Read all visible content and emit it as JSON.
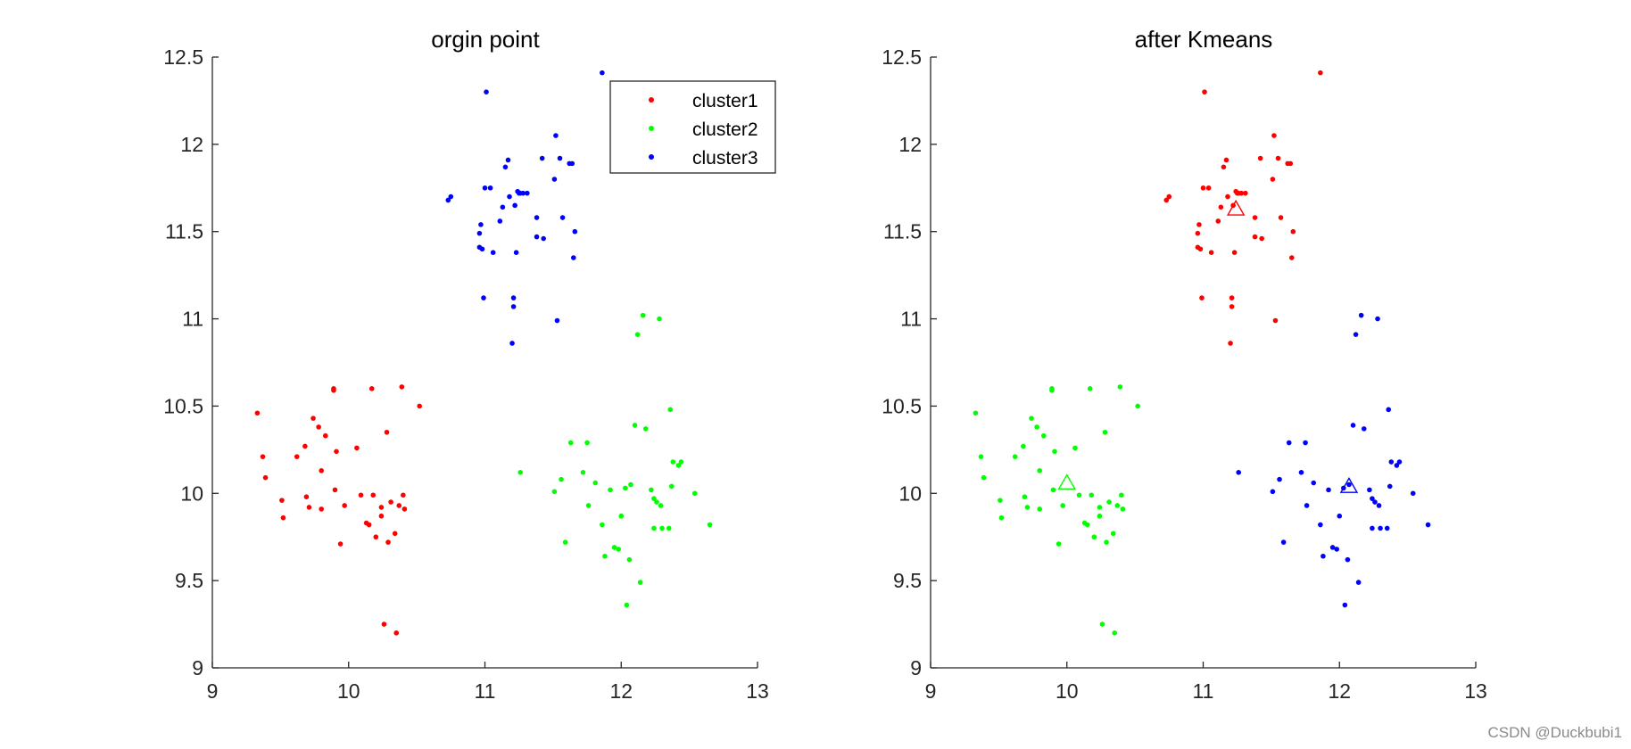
{
  "watermark": "CSDN @Duckbubi1",
  "colors": {
    "cluster1": "#ff0000",
    "cluster2": "#00ff00",
    "cluster3": "#0000ff",
    "axis": "#262626"
  },
  "chart_data": [
    {
      "type": "scatter",
      "title": "orgin point",
      "xlim": [
        9,
        13
      ],
      "ylim": [
        9,
        12.5
      ],
      "xticks": [
        9,
        10,
        11,
        12,
        13
      ],
      "yticks": [
        9,
        9.5,
        10,
        10.5,
        11,
        11.5,
        12,
        12.5
      ],
      "xtick_labels": [
        "9",
        "10",
        "11",
        "12",
        "13"
      ],
      "ytick_labels": [
        "9",
        "9.5",
        "10",
        "10.5",
        "11",
        "11.5",
        "12",
        "12.5"
      ],
      "grid": false,
      "legend": {
        "placement": "top-right",
        "entries": [
          "cluster1",
          "cluster2",
          "cluster3"
        ]
      },
      "series": [
        {
          "name": "cluster1",
          "color": "#ff0000",
          "points": [
            [
              9.33,
              10.46
            ],
            [
              9.37,
              10.21
            ],
            [
              9.39,
              10.09
            ],
            [
              9.51,
              9.96
            ],
            [
              9.52,
              9.86
            ],
            [
              9.62,
              10.21
            ],
            [
              9.68,
              10.27
            ],
            [
              9.69,
              9.98
            ],
            [
              9.71,
              9.92
            ],
            [
              9.74,
              10.43
            ],
            [
              9.78,
              10.38
            ],
            [
              9.8,
              9.91
            ],
            [
              9.8,
              10.13
            ],
            [
              9.83,
              10.33
            ],
            [
              9.89,
              10.6
            ],
            [
              9.89,
              10.59
            ],
            [
              9.9,
              10.02
            ],
            [
              9.91,
              10.24
            ],
            [
              9.94,
              9.71
            ],
            [
              9.97,
              9.93
            ],
            [
              10.06,
              10.26
            ],
            [
              10.09,
              9.99
            ],
            [
              10.13,
              9.83
            ],
            [
              10.15,
              9.82
            ],
            [
              10.17,
              10.6
            ],
            [
              10.18,
              9.99
            ],
            [
              10.2,
              9.75
            ],
            [
              10.24,
              9.92
            ],
            [
              10.24,
              9.87
            ],
            [
              10.26,
              9.25
            ],
            [
              10.28,
              10.35
            ],
            [
              10.29,
              9.72
            ],
            [
              10.31,
              9.95
            ],
            [
              10.34,
              9.77
            ],
            [
              10.35,
              9.2
            ],
            [
              10.37,
              9.93
            ],
            [
              10.39,
              10.61
            ],
            [
              10.4,
              9.99
            ],
            [
              10.41,
              9.91
            ],
            [
              10.52,
              10.5
            ]
          ]
        },
        {
          "name": "cluster2",
          "color": "#00ff00",
          "points": [
            [
              11.26,
              10.12
            ],
            [
              11.51,
              10.01
            ],
            [
              11.56,
              10.08
            ],
            [
              11.59,
              9.72
            ],
            [
              11.63,
              10.29
            ],
            [
              11.75,
              10.29
            ],
            [
              11.72,
              10.12
            ],
            [
              11.76,
              9.93
            ],
            [
              11.81,
              10.06
            ],
            [
              11.86,
              9.82
            ],
            [
              11.88,
              9.64
            ],
            [
              11.92,
              10.02
            ],
            [
              11.95,
              9.69
            ],
            [
              11.98,
              9.68
            ],
            [
              12.0,
              9.87
            ],
            [
              12.03,
              10.03
            ],
            [
              12.04,
              9.36
            ],
            [
              12.06,
              9.62
            ],
            [
              12.07,
              10.05
            ],
            [
              12.1,
              10.39
            ],
            [
              12.12,
              10.91
            ],
            [
              12.14,
              9.49
            ],
            [
              12.16,
              11.02
            ],
            [
              12.18,
              10.37
            ],
            [
              12.22,
              10.02
            ],
            [
              12.24,
              9.8
            ],
            [
              12.24,
              9.97
            ],
            [
              12.26,
              9.95
            ],
            [
              12.28,
              11.0
            ],
            [
              12.29,
              9.93
            ],
            [
              12.3,
              9.8
            ],
            [
              12.35,
              9.8
            ],
            [
              12.36,
              10.48
            ],
            [
              12.37,
              10.04
            ],
            [
              12.38,
              10.18
            ],
            [
              12.42,
              10.16
            ],
            [
              12.44,
              10.18
            ],
            [
              12.54,
              10.0
            ],
            [
              12.65,
              9.82
            ]
          ]
        },
        {
          "name": "cluster3",
          "color": "#0000ff",
          "points": [
            [
              10.73,
              11.68
            ],
            [
              10.75,
              11.7
            ],
            [
              10.96,
              11.49
            ],
            [
              10.96,
              11.41
            ],
            [
              10.97,
              11.54
            ],
            [
              10.98,
              11.4
            ],
            [
              10.99,
              11.12
            ],
            [
              11.0,
              11.75
            ],
            [
              11.01,
              12.3
            ],
            [
              11.04,
              11.75
            ],
            [
              11.06,
              11.38
            ],
            [
              11.11,
              11.56
            ],
            [
              11.13,
              11.64
            ],
            [
              11.15,
              11.87
            ],
            [
              11.17,
              11.91
            ],
            [
              11.18,
              11.7
            ],
            [
              11.2,
              10.86
            ],
            [
              11.21,
              11.12
            ],
            [
              11.21,
              11.07
            ],
            [
              11.22,
              11.65
            ],
            [
              11.23,
              11.38
            ],
            [
              11.24,
              11.73
            ],
            [
              11.25,
              11.72
            ],
            [
              11.26,
              11.72
            ],
            [
              11.28,
              11.72
            ],
            [
              11.31,
              11.72
            ],
            [
              11.38,
              11.47
            ],
            [
              11.38,
              11.58
            ],
            [
              11.42,
              11.92
            ],
            [
              11.43,
              11.46
            ],
            [
              11.51,
              11.8
            ],
            [
              11.52,
              12.05
            ],
            [
              11.53,
              10.99
            ],
            [
              11.55,
              11.92
            ],
            [
              11.57,
              11.58
            ],
            [
              11.62,
              11.89
            ],
            [
              11.64,
              11.89
            ],
            [
              11.65,
              11.35
            ],
            [
              11.66,
              11.5
            ],
            [
              11.86,
              12.41
            ]
          ]
        }
      ]
    },
    {
      "type": "scatter",
      "title": "after Kmeans",
      "xlim": [
        9,
        13
      ],
      "ylim": [
        9,
        12.5
      ],
      "xticks": [
        9,
        10,
        11,
        12,
        13
      ],
      "yticks": [
        9,
        9.5,
        10,
        10.5,
        11,
        11.5,
        12,
        12.5
      ],
      "xtick_labels": [
        "9",
        "10",
        "11",
        "12",
        "13"
      ],
      "ytick_labels": [
        "9",
        "9.5",
        "10",
        "10.5",
        "11",
        "11.5",
        "12",
        "12.5"
      ],
      "grid": false,
      "series": [
        {
          "name": "cluster1",
          "color": "#ff0000",
          "points": [
            [
              10.73,
              11.68
            ],
            [
              10.75,
              11.7
            ],
            [
              10.96,
              11.49
            ],
            [
              10.96,
              11.41
            ],
            [
              10.97,
              11.54
            ],
            [
              10.98,
              11.4
            ],
            [
              10.99,
              11.12
            ],
            [
              11.0,
              11.75
            ],
            [
              11.01,
              12.3
            ],
            [
              11.04,
              11.75
            ],
            [
              11.06,
              11.38
            ],
            [
              11.11,
              11.56
            ],
            [
              11.13,
              11.64
            ],
            [
              11.15,
              11.87
            ],
            [
              11.17,
              11.91
            ],
            [
              11.18,
              11.7
            ],
            [
              11.2,
              10.86
            ],
            [
              11.21,
              11.12
            ],
            [
              11.21,
              11.07
            ],
            [
              11.22,
              11.65
            ],
            [
              11.23,
              11.38
            ],
            [
              11.24,
              11.73
            ],
            [
              11.25,
              11.72
            ],
            [
              11.26,
              11.72
            ],
            [
              11.28,
              11.72
            ],
            [
              11.31,
              11.72
            ],
            [
              11.38,
              11.47
            ],
            [
              11.38,
              11.58
            ],
            [
              11.42,
              11.92
            ],
            [
              11.43,
              11.46
            ],
            [
              11.51,
              11.8
            ],
            [
              11.52,
              12.05
            ],
            [
              11.53,
              10.99
            ],
            [
              11.55,
              11.92
            ],
            [
              11.57,
              11.58
            ],
            [
              11.62,
              11.89
            ],
            [
              11.64,
              11.89
            ],
            [
              11.65,
              11.35
            ],
            [
              11.66,
              11.5
            ],
            [
              11.86,
              12.41
            ]
          ]
        },
        {
          "name": "cluster2",
          "color": "#00ff00",
          "points": [
            [
              9.33,
              10.46
            ],
            [
              9.37,
              10.21
            ],
            [
              9.39,
              10.09
            ],
            [
              9.51,
              9.96
            ],
            [
              9.52,
              9.86
            ],
            [
              9.62,
              10.21
            ],
            [
              9.68,
              10.27
            ],
            [
              9.69,
              9.98
            ],
            [
              9.71,
              9.92
            ],
            [
              9.74,
              10.43
            ],
            [
              9.78,
              10.38
            ],
            [
              9.8,
              9.91
            ],
            [
              9.8,
              10.13
            ],
            [
              9.83,
              10.33
            ],
            [
              9.89,
              10.6
            ],
            [
              9.89,
              10.59
            ],
            [
              9.9,
              10.02
            ],
            [
              9.91,
              10.24
            ],
            [
              9.94,
              9.71
            ],
            [
              9.97,
              9.93
            ],
            [
              10.06,
              10.26
            ],
            [
              10.09,
              9.99
            ],
            [
              10.13,
              9.83
            ],
            [
              10.15,
              9.82
            ],
            [
              10.17,
              10.6
            ],
            [
              10.18,
              9.99
            ],
            [
              10.2,
              9.75
            ],
            [
              10.24,
              9.92
            ],
            [
              10.24,
              9.87
            ],
            [
              10.26,
              9.25
            ],
            [
              10.28,
              10.35
            ],
            [
              10.29,
              9.72
            ],
            [
              10.31,
              9.95
            ],
            [
              10.34,
              9.77
            ],
            [
              10.35,
              9.2
            ],
            [
              10.37,
              9.93
            ],
            [
              10.39,
              10.61
            ],
            [
              10.4,
              9.99
            ],
            [
              10.41,
              9.91
            ],
            [
              10.52,
              10.5
            ]
          ]
        },
        {
          "name": "cluster3",
          "color": "#0000ff",
          "points": [
            [
              11.26,
              10.12
            ],
            [
              11.51,
              10.01
            ],
            [
              11.56,
              10.08
            ],
            [
              11.59,
              9.72
            ],
            [
              11.63,
              10.29
            ],
            [
              11.75,
              10.29
            ],
            [
              11.72,
              10.12
            ],
            [
              11.76,
              9.93
            ],
            [
              11.81,
              10.06
            ],
            [
              11.86,
              9.82
            ],
            [
              11.88,
              9.64
            ],
            [
              11.92,
              10.02
            ],
            [
              11.95,
              9.69
            ],
            [
              11.98,
              9.68
            ],
            [
              12.0,
              9.87
            ],
            [
              12.03,
              10.03
            ],
            [
              12.04,
              9.36
            ],
            [
              12.06,
              9.62
            ],
            [
              12.07,
              10.05
            ],
            [
              12.1,
              10.39
            ],
            [
              12.12,
              10.91
            ],
            [
              12.14,
              9.49
            ],
            [
              12.16,
              11.02
            ],
            [
              12.18,
              10.37
            ],
            [
              12.22,
              10.02
            ],
            [
              12.24,
              9.8
            ],
            [
              12.24,
              9.97
            ],
            [
              12.26,
              9.95
            ],
            [
              12.28,
              11.0
            ],
            [
              12.29,
              9.93
            ],
            [
              12.3,
              9.8
            ],
            [
              12.35,
              9.8
            ],
            [
              12.36,
              10.48
            ],
            [
              12.37,
              10.04
            ],
            [
              12.38,
              10.18
            ],
            [
              12.42,
              10.16
            ],
            [
              12.44,
              10.18
            ],
            [
              12.54,
              10.0
            ],
            [
              12.65,
              9.82
            ]
          ]
        }
      ],
      "centroids": [
        {
          "cluster": "cluster1",
          "color": "#ff0000",
          "marker": "triangle",
          "x": 11.24,
          "y": 11.63
        },
        {
          "cluster": "cluster2",
          "color": "#00ff00",
          "marker": "triangle",
          "x": 10.0,
          "y": 10.06
        },
        {
          "cluster": "cluster3",
          "color": "#0000ff",
          "marker": "triangle",
          "x": 12.07,
          "y": 10.04
        }
      ]
    }
  ]
}
